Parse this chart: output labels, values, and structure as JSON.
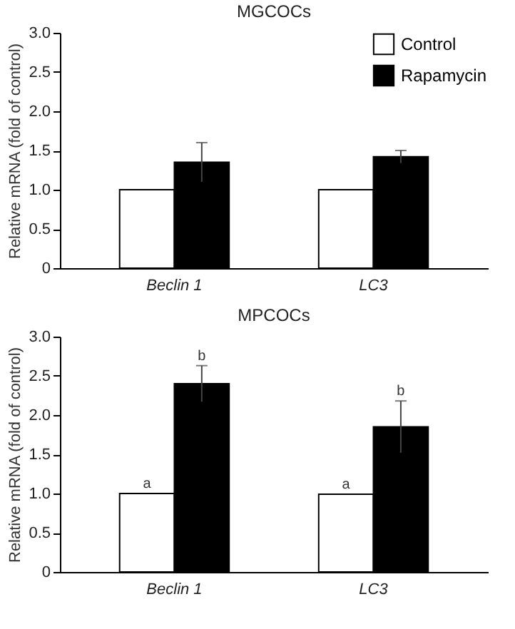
{
  "chart_data": [
    {
      "type": "bar",
      "title": "MGCOCs",
      "ylabel": "Relative mRNA (fold of control)",
      "categories": [
        "Beclin 1",
        "LC3"
      ],
      "series": [
        {
          "name": "Control",
          "color": "#ffffff",
          "values": [
            1.0,
            1.0
          ]
        },
        {
          "name": "Rapamycin",
          "color": "#000000",
          "values": [
            1.35,
            1.42
          ],
          "errors": [
            0.25,
            0.08
          ]
        }
      ],
      "ylim": [
        0,
        3
      ],
      "yticks": [
        0,
        {
          "value": 0.5,
          "label": "0.5"
        },
        {
          "value": 1,
          "label": "1.0"
        },
        {
          "value": 1.5,
          "label": "1.5"
        },
        {
          "value": 2,
          "label": "2.0"
        },
        {
          "value": 2.5,
          "label": "2.5"
        },
        {
          "value": 3,
          "label": "3.0"
        }
      ],
      "grid": false,
      "legend": "top right"
    },
    {
      "type": "bar",
      "title": "MPCOCs",
      "ylabel": "Relative mRNA (fold of control)",
      "categories": [
        "Beclin 1",
        "LC3"
      ],
      "series": [
        {
          "name": "Control",
          "color": "#ffffff",
          "values": [
            1.0,
            0.99
          ]
        },
        {
          "name": "Rapamycin",
          "color": "#000000",
          "values": [
            2.4,
            1.85
          ],
          "errors": [
            0.23,
            0.33
          ]
        }
      ],
      "ylim": [
        0,
        3
      ],
      "yticks": [
        0,
        {
          "value": 0.5,
          "label": "0.5"
        },
        {
          "value": 1,
          "label": "1.0"
        },
        {
          "value": 1.5,
          "label": "1.5"
        },
        {
          "value": 2,
          "label": "2.0"
        },
        {
          "value": 2.5,
          "label": "2.5"
        },
        {
          "value": 3,
          "label": "3.0"
        }
      ],
      "grid": false,
      "legend": "top right",
      "annotations": [
        {
          "text": "a",
          "x": "Beclin 1",
          "y": 1.0
        },
        {
          "text": "b",
          "x": "Beclin 1",
          "y": 2.4
        },
        {
          "text": "a",
          "x": "LC3",
          "y": 0.99
        },
        {
          "text": "b",
          "x": "LC3",
          "y": 1.85
        }
      ]
    }
  ]
}
